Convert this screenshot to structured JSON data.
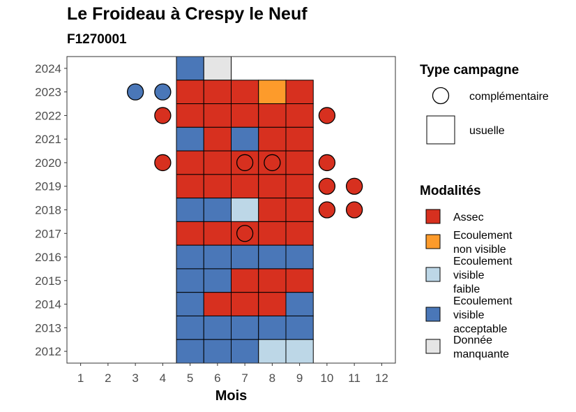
{
  "chart_data": {
    "type": "heatmap",
    "title": "Le Froideau à Crespy le Neuf",
    "subtitle": "F1270001",
    "xlabel": "Mois",
    "ylabel": "",
    "x_ticks": [
      "1",
      "2",
      "3",
      "4",
      "5",
      "6",
      "7",
      "8",
      "9",
      "10",
      "11",
      "12"
    ],
    "y_ticks": [
      "2012",
      "2013",
      "2014",
      "2015",
      "2016",
      "2017",
      "2018",
      "2019",
      "2020",
      "2021",
      "2022",
      "2023",
      "2024"
    ],
    "xlim": [
      0.5,
      12.5
    ],
    "ylim": [
      2011.5,
      2024.5
    ],
    "legend_type": {
      "title": "Type campagne",
      "entries": [
        {
          "key": "complementaire",
          "label": "complémentaire",
          "shape": "circle"
        },
        {
          "key": "usuelle",
          "label": "usuelle",
          "shape": "square"
        }
      ]
    },
    "legend_modalites": {
      "title": "Modalités",
      "entries": [
        {
          "key": "A",
          "lines": [
            "Assec"
          ],
          "color": "#d7301f"
        },
        {
          "key": "N",
          "lines": [
            "Ecoulement",
            "non visible"
          ],
          "color": "#fd9b2b"
        },
        {
          "key": "F",
          "lines": [
            "Ecoulement",
            "visible",
            "faible"
          ],
          "color": "#bdd7e7"
        },
        {
          "key": "V",
          "lines": [
            "Ecoulement",
            "visible",
            "acceptable"
          ],
          "color": "#4a77b8"
        },
        {
          "key": "M",
          "lines": [
            "Donnée",
            "manquante"
          ],
          "color": "#e5e5e5"
        }
      ]
    },
    "usuelle": [
      {
        "year": 2024,
        "month": 5,
        "mod": "V"
      },
      {
        "year": 2024,
        "month": 6,
        "mod": "M"
      },
      {
        "year": 2023,
        "month": 5,
        "mod": "A"
      },
      {
        "year": 2023,
        "month": 6,
        "mod": "A"
      },
      {
        "year": 2023,
        "month": 7,
        "mod": "A"
      },
      {
        "year": 2023,
        "month": 8,
        "mod": "N"
      },
      {
        "year": 2023,
        "month": 9,
        "mod": "A"
      },
      {
        "year": 2022,
        "month": 5,
        "mod": "A"
      },
      {
        "year": 2022,
        "month": 6,
        "mod": "A"
      },
      {
        "year": 2022,
        "month": 7,
        "mod": "A"
      },
      {
        "year": 2022,
        "month": 8,
        "mod": "A"
      },
      {
        "year": 2022,
        "month": 9,
        "mod": "A"
      },
      {
        "year": 2021,
        "month": 5,
        "mod": "V"
      },
      {
        "year": 2021,
        "month": 6,
        "mod": "A"
      },
      {
        "year": 2021,
        "month": 7,
        "mod": "V"
      },
      {
        "year": 2021,
        "month": 8,
        "mod": "A"
      },
      {
        "year": 2021,
        "month": 9,
        "mod": "A"
      },
      {
        "year": 2020,
        "month": 5,
        "mod": "A"
      },
      {
        "year": 2020,
        "month": 6,
        "mod": "A"
      },
      {
        "year": 2020,
        "month": 7,
        "mod": "A"
      },
      {
        "year": 2020,
        "month": 8,
        "mod": "A"
      },
      {
        "year": 2020,
        "month": 9,
        "mod": "A"
      },
      {
        "year": 2019,
        "month": 5,
        "mod": "A"
      },
      {
        "year": 2019,
        "month": 6,
        "mod": "A"
      },
      {
        "year": 2019,
        "month": 7,
        "mod": "A"
      },
      {
        "year": 2019,
        "month": 8,
        "mod": "A"
      },
      {
        "year": 2019,
        "month": 9,
        "mod": "A"
      },
      {
        "year": 2018,
        "month": 5,
        "mod": "V"
      },
      {
        "year": 2018,
        "month": 6,
        "mod": "V"
      },
      {
        "year": 2018,
        "month": 7,
        "mod": "F"
      },
      {
        "year": 2018,
        "month": 8,
        "mod": "A"
      },
      {
        "year": 2018,
        "month": 9,
        "mod": "A"
      },
      {
        "year": 2017,
        "month": 5,
        "mod": "A"
      },
      {
        "year": 2017,
        "month": 6,
        "mod": "A"
      },
      {
        "year": 2017,
        "month": 7,
        "mod": "A"
      },
      {
        "year": 2017,
        "month": 8,
        "mod": "A"
      },
      {
        "year": 2017,
        "month": 9,
        "mod": "A"
      },
      {
        "year": 2016,
        "month": 5,
        "mod": "V"
      },
      {
        "year": 2016,
        "month": 6,
        "mod": "V"
      },
      {
        "year": 2016,
        "month": 7,
        "mod": "V"
      },
      {
        "year": 2016,
        "month": 8,
        "mod": "V"
      },
      {
        "year": 2016,
        "month": 9,
        "mod": "V"
      },
      {
        "year": 2015,
        "month": 5,
        "mod": "V"
      },
      {
        "year": 2015,
        "month": 6,
        "mod": "V"
      },
      {
        "year": 2015,
        "month": 7,
        "mod": "A"
      },
      {
        "year": 2015,
        "month": 8,
        "mod": "A"
      },
      {
        "year": 2015,
        "month": 9,
        "mod": "A"
      },
      {
        "year": 2014,
        "month": 5,
        "mod": "V"
      },
      {
        "year": 2014,
        "month": 6,
        "mod": "A"
      },
      {
        "year": 2014,
        "month": 7,
        "mod": "A"
      },
      {
        "year": 2014,
        "month": 8,
        "mod": "A"
      },
      {
        "year": 2014,
        "month": 9,
        "mod": "V"
      },
      {
        "year": 2013,
        "month": 5,
        "mod": "V"
      },
      {
        "year": 2013,
        "month": 6,
        "mod": "V"
      },
      {
        "year": 2013,
        "month": 7,
        "mod": "V"
      },
      {
        "year": 2013,
        "month": 8,
        "mod": "V"
      },
      {
        "year": 2013,
        "month": 9,
        "mod": "V"
      },
      {
        "year": 2012,
        "month": 5,
        "mod": "V"
      },
      {
        "year": 2012,
        "month": 6,
        "mod": "V"
      },
      {
        "year": 2012,
        "month": 7,
        "mod": "V"
      },
      {
        "year": 2012,
        "month": 8,
        "mod": "F"
      },
      {
        "year": 2012,
        "month": 9,
        "mod": "F"
      }
    ],
    "complementaire": [
      {
        "year": 2023,
        "month": 3,
        "mod": "V"
      },
      {
        "year": 2023,
        "month": 4,
        "mod": "V"
      },
      {
        "year": 2022,
        "month": 4,
        "mod": "A"
      },
      {
        "year": 2022,
        "month": 10,
        "mod": "A"
      },
      {
        "year": 2020,
        "month": 4,
        "mod": "A"
      },
      {
        "year": 2020,
        "month": 7,
        "mod": "A"
      },
      {
        "year": 2020,
        "month": 8,
        "mod": "A"
      },
      {
        "year": 2020,
        "month": 10,
        "mod": "A"
      },
      {
        "year": 2019,
        "month": 10,
        "mod": "A"
      },
      {
        "year": 2019,
        "month": 11,
        "mod": "A"
      },
      {
        "year": 2018,
        "month": 10,
        "mod": "A"
      },
      {
        "year": 2018,
        "month": 11,
        "mod": "A"
      },
      {
        "year": 2017,
        "month": 7,
        "mod": "A"
      }
    ]
  }
}
